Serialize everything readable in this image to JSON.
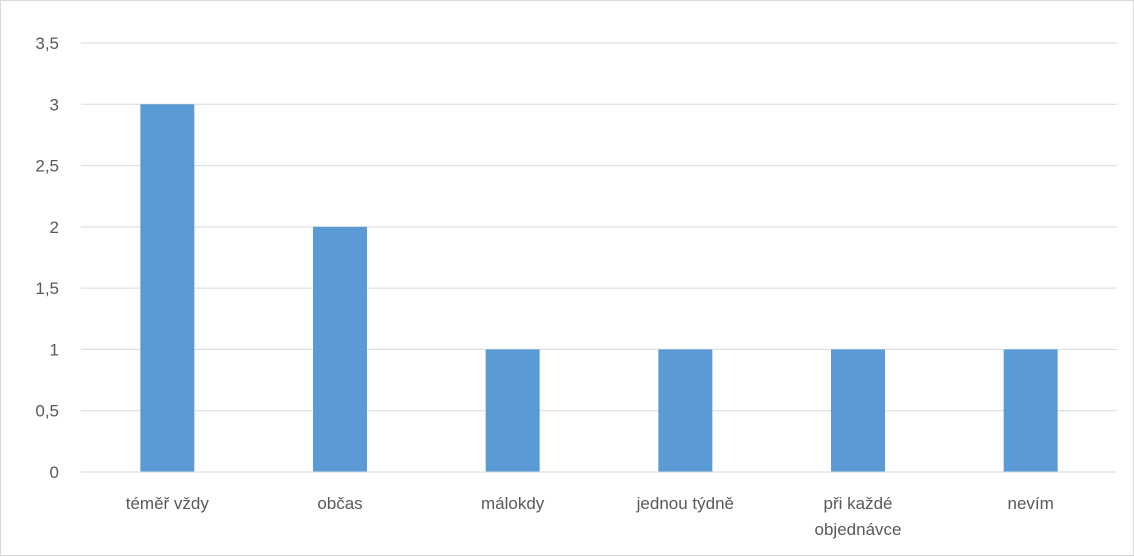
{
  "chart_data": {
    "type": "bar",
    "title": "",
    "xlabel": "",
    "ylabel": "",
    "categories": [
      [
        "téměř vždy"
      ],
      [
        "občas"
      ],
      [
        "málokdy"
      ],
      [
        "jednou týdně"
      ],
      [
        "při každé",
        "objednávce"
      ],
      [
        "nevím"
      ]
    ],
    "values": [
      3,
      2,
      1,
      1,
      1,
      1
    ],
    "ylim": [
      0,
      3.5
    ],
    "yticks": [
      "0",
      "0,5",
      "1",
      "1,5",
      "2",
      "2,5",
      "3",
      "3,5"
    ],
    "grid": true,
    "legend": "none",
    "colors": {
      "bar": "#5b9bd5",
      "grid": "#d9d9d9",
      "axis": "#d9d9d9",
      "text": "#595959"
    }
  }
}
